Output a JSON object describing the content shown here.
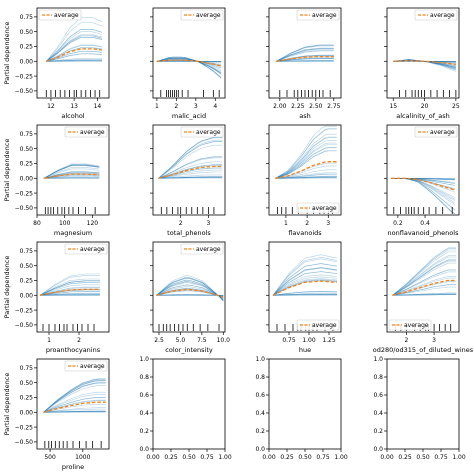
{
  "figure": {
    "shared_ylabel": "Partial dependence",
    "ice_color": "#1f77b4",
    "avg_color": "#ff7f0e",
    "legend_label": "average"
  },
  "chart_data": [
    {
      "type": "line",
      "xlabel": "alcohol",
      "xlim": [
        11.4,
        14.5
      ],
      "xticks": [
        "12",
        "13",
        "14"
      ],
      "xtick_vals": [
        12,
        13,
        14
      ],
      "ylim": [
        -0.62,
        0.9
      ],
      "yticks": [
        "0.75",
        "0.50",
        "0.25",
        "0.00",
        "−0.25",
        "−0.50"
      ],
      "ytick_vals": [
        0.75,
        0.5,
        0.25,
        0,
        -0.25,
        -0.5
      ],
      "legend": "top-left",
      "average": {
        "x": [
          11.8,
          12.3,
          12.8,
          13.3,
          13.8,
          14.2
        ],
        "y": [
          0.0,
          0.07,
          0.16,
          0.21,
          0.21,
          0.19
        ]
      },
      "rug": [
        11.8,
        12.0,
        12.2,
        12.4,
        12.6,
        12.8,
        13.0,
        13.1,
        13.3,
        13.5,
        13.7,
        13.9,
        14.1
      ]
    },
    {
      "type": "line",
      "xlabel": "malic_acid",
      "xlim": [
        0.8,
        4.5
      ],
      "xticks": [
        "1",
        "2",
        "3",
        "4"
      ],
      "xtick_vals": [
        1,
        2,
        3,
        4
      ],
      "ylim": [
        -0.62,
        0.9
      ],
      "yticks": [
        "0.75",
        "0.50",
        "0.25",
        "0.00",
        "−0.25",
        "−0.50"
      ],
      "ytick_vals": [
        0.75,
        0.5,
        0.25,
        0,
        -0.25,
        -0.5
      ],
      "legend": "top-right",
      "average": {
        "x": [
          1.0,
          1.7,
          2.4,
          3.1,
          3.8,
          4.3
        ],
        "y": [
          0.0,
          0.02,
          0.02,
          0.0,
          -0.04,
          -0.08
        ]
      },
      "rug": [
        1.2,
        1.5,
        1.6,
        1.7,
        1.8,
        1.9,
        2.0,
        2.1,
        2.3,
        2.6,
        3.4,
        3.9,
        4.2
      ]
    },
    {
      "type": "line",
      "xlabel": "ash",
      "xlim": [
        1.85,
        2.85
      ],
      "xticks": [
        "2.00",
        "2.25",
        "2.50",
        "2.75"
      ],
      "xtick_vals": [
        2.0,
        2.25,
        2.5,
        2.75
      ],
      "ylim": [
        -0.62,
        0.9
      ],
      "yticks": [
        "0.75",
        "0.50",
        "0.25",
        "0.00",
        "−0.25",
        "−0.50"
      ],
      "ytick_vals": [
        0.75,
        0.5,
        0.25,
        0,
        -0.25,
        -0.5
      ],
      "legend": "top-right",
      "average": {
        "x": [
          1.95,
          2.15,
          2.35,
          2.55,
          2.75
        ],
        "y": [
          0.0,
          0.04,
          0.07,
          0.08,
          0.08
        ]
      },
      "rug": [
        2.0,
        2.1,
        2.2,
        2.25,
        2.3,
        2.35,
        2.4,
        2.45,
        2.5,
        2.55,
        2.6,
        2.7
      ]
    },
    {
      "type": "line",
      "xlabel": "alcalinity_of_ash",
      "xlim": [
        14,
        25.5
      ],
      "xticks": [
        "15",
        "20",
        "25"
      ],
      "xtick_vals": [
        15,
        20,
        25
      ],
      "ylim": [
        -0.62,
        0.9
      ],
      "yticks": [
        "0.75",
        "0.50",
        "0.25",
        "0.00",
        "−0.25",
        "−0.50"
      ],
      "ytick_vals": [
        0.75,
        0.5,
        0.25,
        0,
        -0.25,
        -0.5
      ],
      "legend": "top-right",
      "average": {
        "x": [
          15,
          17.5,
          20,
          22.5,
          25
        ],
        "y": [
          0.0,
          0.01,
          0.0,
          -0.02,
          -0.05
        ]
      },
      "rug": [
        16,
        17,
        18,
        18.5,
        19,
        19.5,
        20,
        21,
        22,
        23,
        24,
        25
      ]
    },
    {
      "type": "line",
      "xlabel": "magnesium",
      "xlim": [
        80,
        132
      ],
      "xticks": [
        "80",
        "100",
        "120"
      ],
      "xtick_vals": [
        80,
        100,
        120
      ],
      "ylim": [
        -0.62,
        0.9
      ],
      "yticks": [
        "0.75",
        "0.50",
        "0.25",
        "0.00",
        "−0.25",
        "−0.50"
      ],
      "ytick_vals": [
        0.75,
        0.5,
        0.25,
        0,
        -0.25,
        -0.5
      ],
      "legend": "top-right",
      "average": {
        "x": [
          85,
          95,
          105,
          115,
          125
        ],
        "y": [
          0.0,
          0.04,
          0.07,
          0.07,
          0.06
        ]
      },
      "rug": [
        86,
        88,
        90,
        92,
        95,
        98,
        100,
        103,
        106,
        110,
        115,
        122
      ]
    },
    {
      "type": "line",
      "xlabel": "total_phenols",
      "xlim": [
        1.0,
        3.6
      ],
      "xticks": [
        "2",
        "3"
      ],
      "xtick_vals": [
        2,
        3
      ],
      "ylim": [
        -0.62,
        0.9
      ],
      "yticks": [
        "0.75",
        "0.50",
        "0.25",
        "0.00",
        "−0.25",
        "−0.50"
      ],
      "ytick_vals": [
        0.75,
        0.5,
        0.25,
        0,
        -0.25,
        -0.5
      ],
      "legend": "top-right",
      "average": {
        "x": [
          1.2,
          1.7,
          2.2,
          2.7,
          3.2,
          3.5
        ],
        "y": [
          0.0,
          0.06,
          0.13,
          0.18,
          0.2,
          0.2
        ]
      },
      "rug": [
        1.3,
        1.5,
        1.7,
        1.9,
        2.0,
        2.2,
        2.4,
        2.6,
        2.8,
        3.0,
        3.2
      ]
    },
    {
      "type": "line",
      "xlabel": "flavanoids",
      "xlim": [
        0.2,
        3.6
      ],
      "xticks": [
        "1",
        "2",
        "3"
      ],
      "xtick_vals": [
        1,
        2,
        3
      ],
      "ylim": [
        -0.62,
        0.9
      ],
      "yticks": [
        "0.75",
        "0.50",
        "0.25",
        "0.00",
        "−0.25",
        "−0.50"
      ],
      "ytick_vals": [
        0.75,
        0.5,
        0.25,
        0,
        -0.25,
        -0.5
      ],
      "legend": "bottom-right",
      "average": {
        "x": [
          0.5,
          1.1,
          1.7,
          2.3,
          2.9,
          3.4
        ],
        "y": [
          0.0,
          0.04,
          0.12,
          0.22,
          0.28,
          0.28
        ]
      },
      "rug": [
        0.6,
        0.8,
        1.0,
        1.3,
        1.6,
        2.0,
        2.3,
        2.6,
        2.8,
        3.0,
        3.2
      ]
    },
    {
      "type": "line",
      "xlabel": "nonflavanoid_phenols",
      "xlim": [
        0.12,
        0.65
      ],
      "xticks": [
        "0.2",
        "0.4"
      ],
      "xtick_vals": [
        0.2,
        0.4
      ],
      "ylim": [
        -0.62,
        0.9
      ],
      "yticks": [
        "0.75",
        "0.50",
        "0.25",
        "0.00",
        "−0.25",
        "−0.50"
      ],
      "ytick_vals": [
        0.75,
        0.5,
        0.25,
        0,
        -0.25,
        -0.5
      ],
      "legend": "top-right",
      "average": {
        "x": [
          0.15,
          0.25,
          0.35,
          0.45,
          0.55,
          0.62
        ],
        "y": [
          0.0,
          0.0,
          -0.02,
          -0.08,
          -0.15,
          -0.2
        ]
      },
      "rug": [
        0.17,
        0.22,
        0.26,
        0.28,
        0.3,
        0.32,
        0.35,
        0.39,
        0.43,
        0.48,
        0.53,
        0.6
      ]
    },
    {
      "type": "line",
      "xlabel": "proanthocyanins",
      "xlim": [
        0.6,
        3.0
      ],
      "xticks": [
        "1",
        "2"
      ],
      "xtick_vals": [
        1,
        2
      ],
      "ylim": [
        -0.62,
        0.9
      ],
      "yticks": [
        "0.75",
        "0.50",
        "0.25",
        "0.00",
        "−0.25",
        "−0.50"
      ],
      "ytick_vals": [
        0.75,
        0.5,
        0.25,
        0,
        -0.25,
        -0.5
      ],
      "legend": "top-right",
      "average": {
        "x": [
          0.7,
          1.2,
          1.7,
          2.2,
          2.7
        ],
        "y": [
          0.0,
          0.05,
          0.09,
          0.1,
          0.1
        ]
      },
      "rug": [
        0.8,
        1.0,
        1.2,
        1.35,
        1.5,
        1.6,
        1.8,
        1.95,
        2.1,
        2.3,
        2.5
      ]
    },
    {
      "type": "line",
      "xlabel": "color_intensity",
      "xlim": [
        1.8,
        10.2
      ],
      "xticks": [
        "2.5",
        "5.0",
        "7.5",
        "10.0"
      ],
      "xtick_vals": [
        2.5,
        5,
        7.5,
        10
      ],
      "ylim": [
        -0.62,
        0.9
      ],
      "yticks": [
        "0.75",
        "0.50",
        "0.25",
        "0.00",
        "−0.25",
        "−0.50"
      ],
      "ytick_vals": [
        0.75,
        0.5,
        0.25,
        0,
        -0.25,
        -0.5
      ],
      "legend": "top-right",
      "average": {
        "x": [
          2.2,
          4.0,
          5.8,
          7.6,
          9.4,
          10.0
        ],
        "y": [
          0.0,
          0.07,
          0.1,
          0.07,
          0.0,
          -0.03
        ]
      },
      "rug": [
        2.5,
        3.0,
        3.4,
        3.8,
        4.3,
        4.8,
        5.3,
        5.8,
        6.5,
        7.3,
        8.2,
        9.5
      ]
    },
    {
      "type": "line",
      "xlabel": "hue",
      "xlim": [
        0.5,
        1.4
      ],
      "xticks": [
        "0.75",
        "1.00",
        "1.25"
      ],
      "xtick_vals": [
        0.75,
        1.0,
        1.25
      ],
      "ylim": [
        -0.62,
        0.9
      ],
      "yticks": [
        "0.75",
        "0.50",
        "0.25",
        "0.00",
        "−0.25",
        "−0.50"
      ],
      "ytick_vals": [
        0.75,
        0.5,
        0.25,
        0,
        -0.25,
        -0.5
      ],
      "legend": "bottom-right",
      "average": {
        "x": [
          0.55,
          0.75,
          0.95,
          1.15,
          1.35
        ],
        "y": [
          0.0,
          0.13,
          0.22,
          0.24,
          0.22
        ]
      },
      "rug": [
        0.6,
        0.7,
        0.8,
        0.86,
        0.9,
        0.96,
        1.0,
        1.05,
        1.1,
        1.2,
        1.3
      ]
    },
    {
      "type": "line",
      "xlabel": "od280/od315_of_diluted_wines",
      "xlim": [
        1.3,
        3.9
      ],
      "xticks": [
        "2",
        "3"
      ],
      "xtick_vals": [
        2,
        3
      ],
      "ylim": [
        -0.62,
        0.9
      ],
      "yticks": [
        "0.75",
        "0.50",
        "0.25",
        "0.00",
        "−0.25",
        "−0.50"
      ],
      "ytick_vals": [
        0.75,
        0.5,
        0.25,
        0,
        -0.25,
        -0.5
      ],
      "legend": "bottom-left",
      "average": {
        "x": [
          1.5,
          2.0,
          2.5,
          3.0,
          3.5,
          3.8
        ],
        "y": [
          0.0,
          0.06,
          0.13,
          0.2,
          0.25,
          0.25
        ]
      },
      "rug": [
        1.6,
        1.8,
        2.0,
        2.3,
        2.5,
        2.7,
        2.8,
        3.0,
        3.2,
        3.4,
        3.6
      ]
    },
    {
      "type": "line",
      "xlabel": "proline",
      "xlim": [
        300,
        1400
      ],
      "xticks": [
        "500",
        "1000"
      ],
      "xtick_vals": [
        500,
        1000
      ],
      "ylim": [
        -0.62,
        0.9
      ],
      "yticks": [
        "0.75",
        "0.50",
        "0.25",
        "0.00",
        "−0.25",
        "−0.50"
      ],
      "ytick_vals": [
        0.75,
        0.5,
        0.25,
        0,
        -0.25,
        -0.5
      ],
      "legend": "top-right",
      "average": {
        "x": [
          400,
          600,
          800,
          1000,
          1200,
          1350
        ],
        "y": [
          0.0,
          0.06,
          0.11,
          0.15,
          0.17,
          0.17
        ]
      },
      "rug": [
        420,
        480,
        520,
        580,
        640,
        700,
        760,
        850,
        950,
        1050,
        1150,
        1280
      ]
    },
    {
      "type": "empty",
      "xticks": [
        "0.00",
        "0.25",
        "0.50",
        "0.75",
        "1.00"
      ],
      "xtick_vals": [
        0,
        0.25,
        0.5,
        0.75,
        1
      ],
      "yticks": [
        "1.0",
        "0.8",
        "0.6",
        "0.4",
        "0.2",
        "0.0"
      ],
      "ytick_vals": [
        1,
        0.8,
        0.6,
        0.4,
        0.2,
        0
      ],
      "xlim": [
        0,
        1
      ],
      "ylim": [
        0,
        1
      ]
    },
    {
      "type": "empty",
      "xticks": [
        "0.00",
        "0.25",
        "0.50",
        "0.75",
        "1.00"
      ],
      "xtick_vals": [
        0,
        0.25,
        0.5,
        0.75,
        1
      ],
      "yticks": [
        "1.0",
        "0.8",
        "0.6",
        "0.4",
        "0.2",
        "0.0"
      ],
      "ytick_vals": [
        1,
        0.8,
        0.6,
        0.4,
        0.2,
        0
      ],
      "xlim": [
        0,
        1
      ],
      "ylim": [
        0,
        1
      ]
    },
    {
      "type": "empty",
      "xticks": [
        "0.00",
        "0.25",
        "0.50",
        "0.75",
        "1.00"
      ],
      "xtick_vals": [
        0,
        0.25,
        0.5,
        0.75,
        1
      ],
      "yticks": [
        "1.0",
        "0.8",
        "0.6",
        "0.4",
        "0.2",
        "0.0"
      ],
      "ytick_vals": [
        1,
        0.8,
        0.6,
        0.4,
        0.2,
        0
      ],
      "xlim": [
        0,
        1
      ],
      "ylim": [
        0,
        1
      ]
    }
  ]
}
